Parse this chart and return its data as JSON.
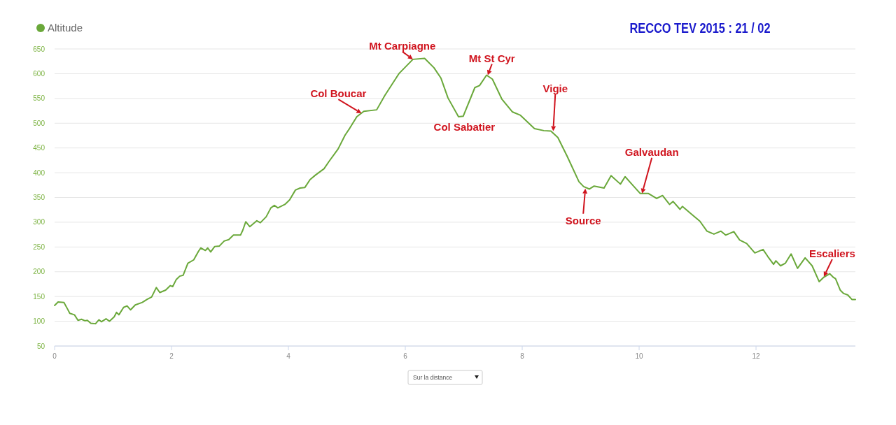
{
  "chart_data": {
    "type": "line",
    "title": "RECCO TEV 2015 : 21 / 02",
    "x": [
      0.0,
      0.06,
      0.16,
      0.22,
      0.26,
      0.34,
      0.4,
      0.46,
      0.52,
      0.56,
      0.62,
      0.7,
      0.76,
      0.8,
      0.88,
      0.94,
      1.02,
      1.06,
      1.1,
      1.18,
      1.24,
      1.3,
      1.38,
      1.5,
      1.58,
      1.66,
      1.74,
      1.8,
      1.9,
      1.98,
      2.02,
      2.08,
      2.14,
      2.2,
      2.28,
      2.38,
      2.46,
      2.5,
      2.58,
      2.62,
      2.67,
      2.74,
      2.82,
      2.9,
      2.98,
      3.06,
      3.18,
      3.22,
      3.27,
      3.34,
      3.46,
      3.52,
      3.62,
      3.7,
      3.76,
      3.82,
      3.94,
      4.02,
      4.12,
      4.2,
      4.28,
      4.37,
      4.46,
      4.61,
      4.69,
      4.85,
      4.97,
      5.05,
      5.17,
      5.29,
      5.51,
      5.65,
      5.89,
      6.13,
      6.33,
      6.49,
      6.61,
      6.73,
      6.91,
      6.99,
      7.19,
      7.27,
      7.39,
      7.49,
      7.65,
      7.83,
      7.97,
      8.21,
      8.37,
      8.49,
      8.61,
      8.77,
      8.97,
      9.05,
      9.15,
      9.23,
      9.4,
      9.52,
      9.68,
      9.76,
      9.92,
      10.02,
      10.16,
      10.3,
      10.4,
      10.52,
      10.58,
      10.7,
      10.74,
      10.88,
      11.04,
      11.16,
      11.28,
      11.4,
      11.48,
      11.62,
      11.72,
      11.84,
      11.98,
      12.12,
      12.2,
      12.3,
      12.34,
      12.42,
      12.5,
      12.6,
      12.71,
      12.84,
      12.96,
      13.08,
      13.16,
      13.26,
      13.32,
      13.36,
      13.44,
      13.5,
      13.57,
      13.64,
      13.7
    ],
    "series": [
      {
        "name": "Altitude",
        "color": "#6aa83a",
        "values": [
          132,
          139,
          138,
          125,
          116,
          113,
          102,
          104,
          101,
          102,
          96,
          95,
          103,
          99,
          105,
          100,
          109,
          118,
          113,
          128,
          131,
          123,
          133,
          138,
          144,
          149,
          168,
          158,
          163,
          172,
          170,
          184,
          191,
          193,
          217,
          224,
          241,
          248,
          243,
          248,
          240,
          251,
          252,
          262,
          265,
          274,
          274,
          284,
          301,
          291,
          303,
          299,
          311,
          329,
          334,
          329,
          336,
          345,
          365,
          369,
          370,
          386,
          395,
          408,
          422,
          448,
          476,
          490,
          513,
          524,
          527,
          556,
          600,
          629,
          631,
          612,
          591,
          551,
          513,
          514,
          572,
          576,
          597,
          589,
          549,
          523,
          516,
          489,
          485,
          484,
          471,
          433,
          382,
          372,
          367,
          373,
          369,
          394,
          377,
          392,
          371,
          358,
          358,
          348,
          354,
          336,
          342,
          326,
          332,
          318,
          302,
          282,
          276,
          282,
          274,
          281,
          264,
          257,
          238,
          245,
          231,
          215,
          222,
          212,
          217,
          236,
          207,
          228,
          212,
          180,
          189,
          196,
          189,
          186,
          163,
          156,
          153,
          144,
          144
        ]
      }
    ],
    "xlim": [
      0,
      13.7
    ],
    "xticks": [
      0,
      2,
      4,
      6,
      8,
      10,
      12
    ],
    "ylim": [
      50,
      650
    ],
    "yticks": [
      50,
      100,
      150,
      200,
      250,
      300,
      350,
      400,
      450,
      500,
      550,
      600,
      650
    ],
    "grid": "y",
    "legend": "top left",
    "marker": "none",
    "line_style": "solid",
    "annotations": [
      {
        "text": "Col Boucar",
        "x": 5.25,
        "y": 520
      },
      {
        "text": "Mt Carpiagne",
        "x": 6.13,
        "y": 629
      },
      {
        "text": "Mt St Cyr",
        "x": 7.41,
        "y": 597
      },
      {
        "text": "Col Sabatier",
        "x": 6.95,
        "y": 513
      },
      {
        "text": "Vigie",
        "x": 8.53,
        "y": 484
      },
      {
        "text": "Source",
        "x": 9.08,
        "y": 368
      },
      {
        "text": "Galvaudan",
        "x": 10.05,
        "y": 358
      },
      {
        "text": "Escaliers",
        "x": 13.16,
        "y": 190
      },
      "Sur la distance"
    ]
  }
}
